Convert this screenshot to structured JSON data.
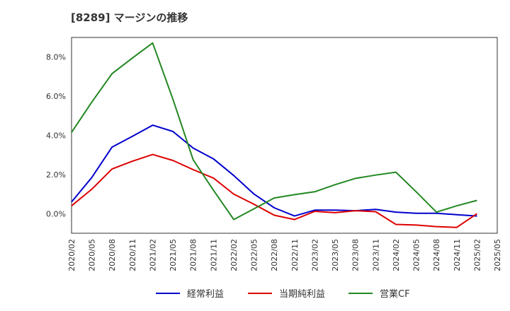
{
  "chart_data": {
    "type": "line",
    "title": "[8289]  マージンの推移",
    "xlabel": "",
    "ylabel": "",
    "x": [
      "2020/02",
      "2020/05",
      "2020/08",
      "2020/11",
      "2021/02",
      "2021/05",
      "2021/08",
      "2021/11",
      "2022/02",
      "2022/05",
      "2022/08",
      "2022/11",
      "2023/02",
      "2023/05",
      "2023/08",
      "2023/11",
      "2024/02",
      "2024/05",
      "2024/08",
      "2024/11",
      "2025/02",
      "2025/05"
    ],
    "ylim": [
      -1.0,
      9.0
    ],
    "yticks": [
      0.0,
      2.0,
      4.0,
      6.0,
      8.0
    ],
    "ytick_labels": [
      "0.0%",
      "2.0%",
      "4.0%",
      "6.0%",
      "8.0%"
    ],
    "grid": true,
    "legend_position": "bottom",
    "series": [
      {
        "name": "経常利益",
        "color": "#0000cc",
        "values": [
          0.6,
          1.85,
          3.4,
          3.95,
          4.52,
          4.2,
          3.35,
          2.8,
          1.95,
          1.0,
          0.3,
          -0.12,
          0.18,
          0.18,
          0.15,
          0.22,
          0.08,
          0.02,
          0.02,
          -0.05,
          -0.12,
          null
        ]
      },
      {
        "name": "当期純利益",
        "color": "#dd0000",
        "values": [
          0.4,
          1.25,
          2.28,
          2.68,
          3.02,
          2.72,
          2.25,
          1.82,
          1.0,
          0.48,
          -0.08,
          -0.3,
          0.12,
          0.05,
          0.15,
          0.1,
          -0.55,
          -0.58,
          -0.66,
          -0.7,
          0.0,
          null
        ]
      },
      {
        "name": "営業CF",
        "color": "#228822",
        "values": [
          4.15,
          5.7,
          7.15,
          7.95,
          8.72,
          5.85,
          2.75,
          1.2,
          -0.3,
          0.25,
          0.8,
          0.97,
          1.12,
          1.48,
          1.8,
          1.97,
          2.12,
          1.12,
          0.08,
          0.4,
          0.68,
          null
        ]
      }
    ]
  }
}
